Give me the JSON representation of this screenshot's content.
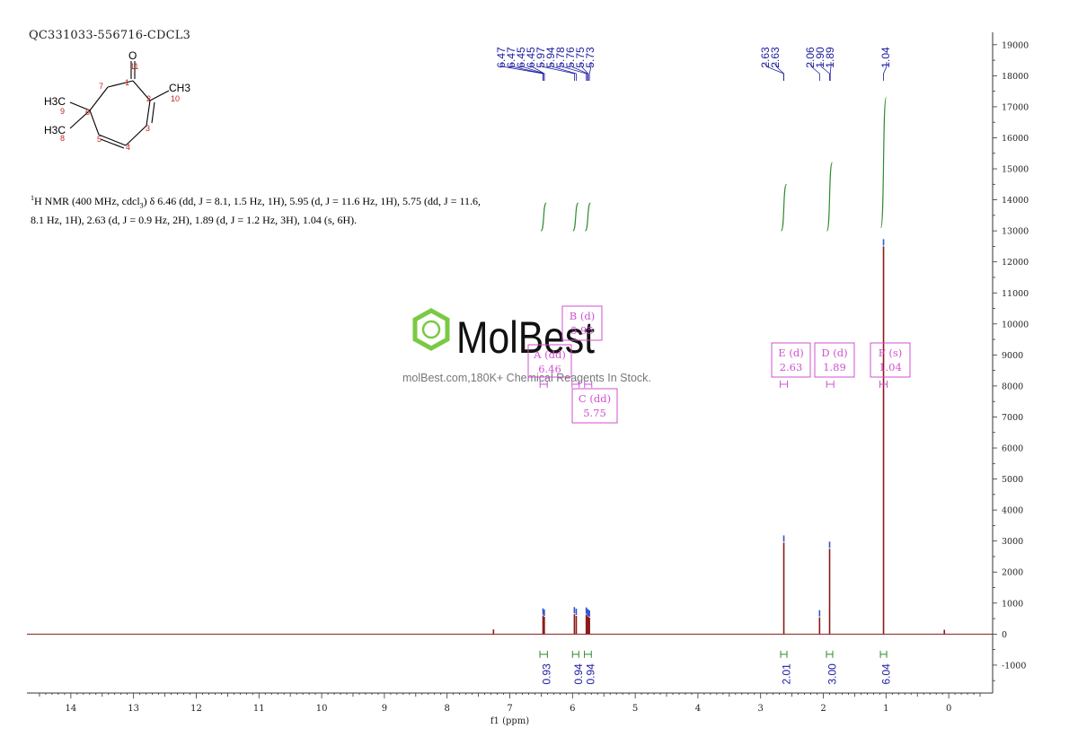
{
  "sample_id": "QC331033-556716-CDCL3",
  "structure": {
    "o_label": "O",
    "ch3_label": "CH3",
    "h3c_upper": "H3C",
    "h3c_lower": "H3C",
    "atom_numbers": [
      "1",
      "2",
      "3",
      "4",
      "5",
      "6",
      "7",
      "8",
      "9",
      "10",
      "11"
    ]
  },
  "nmr_text": {
    "nucleus_sup": "1",
    "line1": "H NMR (400 MHz, cdcl",
    "solvent_sub": "3",
    "line1b": ") δ 6.46 (dd, J = 8.1, 1.5 Hz, 1H), 5.95 (d, J = 11.6 Hz, 1H), 5.75 (dd, J = 11.6,",
    "line2": "8.1 Hz, 1H), 2.63 (d, J = 0.9 Hz, 2H), 1.89 (d, J = 1.2 Hz, 3H), 1.04 (s, 6H)."
  },
  "watermark": {
    "brand": "MolBest",
    "tagline": "molBest.com,180K+ Chemical Reagents In Stock."
  },
  "colors": {
    "spectrum": "#8b1a1a",
    "integral": "#2e8b2e",
    "peak_label": "#1a1aa0",
    "multiplet_box": "#d050d0",
    "brand_green": "#7ac943",
    "axis": "#333333"
  },
  "chart_data": {
    "type": "line",
    "xlabel": "f1 (ppm)",
    "xlim": [
      14.7,
      -0.7
    ],
    "ylim": [
      -1900,
      19400
    ],
    "x_ticks": [
      14,
      13,
      12,
      11,
      10,
      9,
      8,
      7,
      6,
      5,
      4,
      3,
      2,
      1,
      0
    ],
    "y_ticks": [
      -1000,
      0,
      1000,
      2000,
      3000,
      4000,
      5000,
      6000,
      7000,
      8000,
      9000,
      10000,
      11000,
      12000,
      13000,
      14000,
      15000,
      16000,
      17000,
      18000,
      19000
    ],
    "peaks": [
      {
        "ppm": 7.26,
        "height": 150
      },
      {
        "ppm": 6.47,
        "height": 600
      },
      {
        "ppm": 6.45,
        "height": 560
      },
      {
        "ppm": 5.97,
        "height": 640
      },
      {
        "ppm": 5.94,
        "height": 590
      },
      {
        "ppm": 5.78,
        "height": 630
      },
      {
        "ppm": 5.76,
        "height": 580
      },
      {
        "ppm": 5.75,
        "height": 560
      },
      {
        "ppm": 5.73,
        "height": 530
      },
      {
        "ppm": 2.63,
        "height": 2950
      },
      {
        "ppm": 2.06,
        "height": 540
      },
      {
        "ppm": 1.9,
        "height": 2750
      },
      {
        "ppm": 1.04,
        "height": 12500
      },
      {
        "ppm": 0.07,
        "height": 140
      }
    ],
    "peak_labels": [
      "6.47",
      "6.47",
      "6.45",
      "6.45",
      "5.97",
      "5.94",
      "5.78",
      "5.76",
      "5.75",
      "5.73",
      "2.63",
      "2.63",
      "2.06",
      "1.90",
      "1.89",
      "1.04"
    ],
    "integrals": [
      {
        "from": 6.52,
        "to": 6.4,
        "value": "0.93",
        "curve_start": 13000,
        "curve_end": 13900
      },
      {
        "from": 6.0,
        "to": 5.9,
        "value": "0.94",
        "curve_start": 13000,
        "curve_end": 13900
      },
      {
        "from": 5.81,
        "to": 5.7,
        "value": "0.94",
        "curve_start": 13000,
        "curve_end": 13900
      },
      {
        "from": 2.68,
        "to": 2.58,
        "value": "2.01",
        "curve_start": 13000,
        "curve_end": 14500
      },
      {
        "from": 1.95,
        "to": 1.85,
        "value": "3.00",
        "curve_start": 13000,
        "curve_end": 15200
      },
      {
        "from": 1.09,
        "to": 0.99,
        "value": "6.04",
        "curve_start": 13100,
        "curve_end": 17300
      }
    ],
    "multiplets": [
      {
        "letter": "A",
        "mult": "dd",
        "shift": "6.46"
      },
      {
        "letter": "B",
        "mult": "d",
        "shift": "5.95"
      },
      {
        "letter": "C",
        "mult": "dd",
        "shift": "5.75"
      },
      {
        "letter": "E",
        "mult": "d",
        "shift": "2.63"
      },
      {
        "letter": "D",
        "mult": "d",
        "shift": "1.89"
      },
      {
        "letter": "F",
        "mult": "s",
        "shift": "1.04"
      }
    ]
  }
}
